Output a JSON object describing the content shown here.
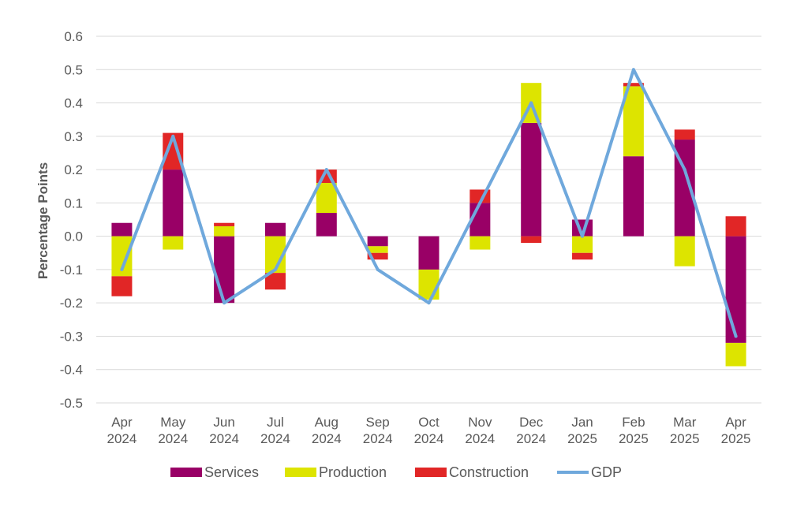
{
  "chart_data": {
    "type": "bar",
    "stacked": true,
    "title": "",
    "xlabel": "",
    "ylabel": "Percentage Points",
    "ylim": [
      -0.5,
      0.6
    ],
    "yticks": [
      "0.6",
      "0.5",
      "0.4",
      "0.3",
      "0.2",
      "0.1",
      "0.0",
      "-0.1",
      "-0.2",
      "-0.3",
      "-0.4",
      "-0.5"
    ],
    "categories": [
      [
        "Apr",
        "2024"
      ],
      [
        "May",
        "2024"
      ],
      [
        "Jun",
        "2024"
      ],
      [
        "Jul",
        "2024"
      ],
      [
        "Aug",
        "2024"
      ],
      [
        "Sep",
        "2024"
      ],
      [
        "Oct",
        "2024"
      ],
      [
        "Nov",
        "2024"
      ],
      [
        "Dec",
        "2024"
      ],
      [
        "Jan",
        "2025"
      ],
      [
        "Feb",
        "2025"
      ],
      [
        "Mar",
        "2025"
      ],
      [
        "Apr",
        "2025"
      ]
    ],
    "series": [
      {
        "name": "Services",
        "type": "bar",
        "color": "#990066",
        "values": [
          0.04,
          0.2,
          -0.2,
          0.04,
          0.07,
          -0.03,
          -0.1,
          0.1,
          0.34,
          0.05,
          0.24,
          0.29,
          -0.32
        ]
      },
      {
        "name": "Production",
        "type": "bar",
        "color": "#DDE400",
        "values": [
          -0.12,
          -0.04,
          0.03,
          -0.11,
          0.09,
          -0.02,
          -0.09,
          -0.04,
          0.12,
          -0.05,
          0.21,
          -0.09,
          -0.07
        ]
      },
      {
        "name": "Construction",
        "type": "bar",
        "color": "#E12626",
        "values": [
          -0.06,
          0.11,
          0.01,
          -0.05,
          0.04,
          -0.02,
          0.0,
          0.04,
          -0.02,
          -0.02,
          0.01,
          0.03,
          0.06
        ]
      },
      {
        "name": "GDP",
        "type": "line",
        "color": "#6FA8DC",
        "values": [
          -0.1,
          0.3,
          -0.2,
          -0.1,
          0.2,
          -0.1,
          -0.2,
          0.1,
          0.4,
          0.0,
          0.5,
          0.2,
          -0.3
        ]
      }
    ],
    "grid": true,
    "legend": "bottom"
  }
}
